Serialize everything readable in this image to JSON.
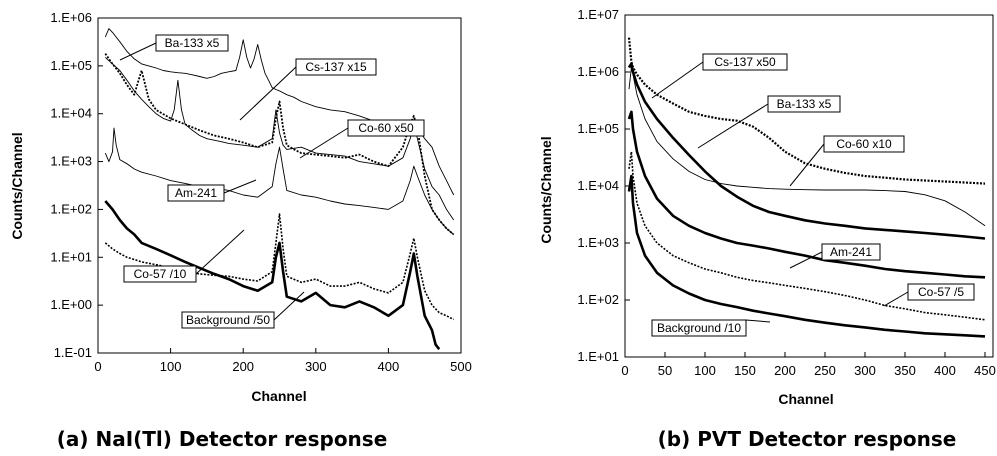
{
  "chart_data": [
    {
      "type": "line",
      "caption": "(a) NaI(Tl) Detector response",
      "xlabel": "Channel",
      "ylabel": "Counts/Channel",
      "xlim": [
        0,
        500
      ],
      "ylim": [
        0.1,
        1000000
      ],
      "yscale": "log",
      "xticks": [
        "0",
        "100",
        "200",
        "300",
        "400",
        "500"
      ],
      "yticks": [
        "1.E-01",
        "1.E+00",
        "1.E+01",
        "1.E+02",
        "1.E+03",
        "1.E+04",
        "1.E+05",
        "1.E+06"
      ],
      "grid": false,
      "series": [
        {
          "name": "Ba-133 x5",
          "x": [
            10,
            15,
            20,
            30,
            40,
            50,
            60,
            70,
            80,
            90,
            100,
            110,
            120,
            130,
            140,
            150,
            160,
            170,
            180,
            190,
            195,
            200,
            205,
            210,
            215,
            220,
            225,
            230,
            235,
            240,
            245,
            250,
            260,
            270,
            280,
            300,
            320,
            340,
            360,
            380,
            400,
            420,
            430,
            440,
            450,
            460,
            470,
            480,
            490
          ],
          "y": [
            400000,
            600000,
            500000,
            320000,
            200000,
            140000,
            110000,
            100000,
            90000,
            80000,
            75000,
            72000,
            70000,
            65000,
            60000,
            55000,
            60000,
            70000,
            75000,
            80000,
            150000,
            350000,
            150000,
            90000,
            140000,
            280000,
            130000,
            70000,
            50000,
            35000,
            32000,
            30000,
            25000,
            22000,
            18000,
            14000,
            12000,
            11000,
            9000,
            7000,
            6000,
            6500,
            7000,
            5000,
            3000,
            2000,
            800,
            400,
            200
          ]
        },
        {
          "name": "Cs-137 x15",
          "x": [
            10,
            20,
            30,
            40,
            50,
            60,
            70,
            80,
            90,
            100,
            105,
            110,
            115,
            120,
            130,
            140,
            150,
            160,
            170,
            180,
            200,
            220,
            240,
            245,
            250,
            255,
            260,
            280,
            300,
            320,
            340,
            360,
            380,
            400,
            420,
            430,
            435,
            440,
            450,
            460,
            470,
            480,
            490
          ],
          "y": [
            150000,
            110000,
            80000,
            50000,
            30000,
            20000,
            14000,
            10000,
            8000,
            7000,
            12000,
            50000,
            12000,
            6000,
            4500,
            3500,
            3000,
            2800,
            2600,
            2400,
            2200,
            2000,
            3000,
            12000,
            4000,
            2200,
            1800,
            2000,
            1500,
            1400,
            1300,
            1000,
            900,
            800,
            1200,
            3000,
            6000,
            3000,
            700,
            300,
            200,
            100,
            60
          ]
        },
        {
          "name": "Co-60 x50",
          "x": [
            10,
            20,
            30,
            40,
            50,
            55,
            60,
            65,
            70,
            80,
            100,
            120,
            140,
            160,
            180,
            200,
            220,
            240,
            245,
            250,
            255,
            260,
            270,
            280,
            300,
            320,
            340,
            360,
            380,
            400,
            420,
            430,
            435,
            440,
            450,
            460,
            470,
            480,
            490
          ],
          "y": [
            180000,
            110000,
            70000,
            40000,
            25000,
            45000,
            80000,
            40000,
            20000,
            12000,
            8000,
            6000,
            4500,
            3500,
            3000,
            2500,
            2000,
            2500,
            8000,
            18000,
            5000,
            2200,
            1800,
            1500,
            1400,
            1300,
            1200,
            1400,
            1000,
            800,
            2000,
            6000,
            9000,
            5000,
            500,
            100,
            60,
            40,
            30
          ]
        },
        {
          "name": "Am-241",
          "x": [
            10,
            15,
            20,
            22,
            25,
            30,
            40,
            50,
            60,
            80,
            100,
            120,
            140,
            160,
            180,
            200,
            220,
            240,
            245,
            250,
            255,
            260,
            280,
            300,
            320,
            340,
            360,
            380,
            400,
            420,
            430,
            435,
            440,
            450,
            460,
            470,
            480,
            490
          ],
          "y": [
            1500,
            1000,
            1600,
            5000,
            2200,
            1100,
            900,
            700,
            600,
            500,
            400,
            350,
            300,
            280,
            250,
            200,
            180,
            300,
            900,
            2000,
            700,
            250,
            200,
            180,
            150,
            130,
            120,
            110,
            100,
            150,
            400,
            800,
            500,
            200,
            100,
            60,
            40,
            30
          ]
        },
        {
          "name": "Co-57 /10",
          "x": [
            10,
            20,
            30,
            40,
            50,
            60,
            80,
            100,
            120,
            140,
            160,
            180,
            200,
            220,
            240,
            245,
            250,
            255,
            260,
            280,
            300,
            320,
            340,
            360,
            380,
            400,
            420,
            430,
            435,
            440,
            450,
            460,
            470,
            480,
            490
          ],
          "y": [
            20,
            15,
            12,
            10,
            9,
            8,
            7,
            6,
            5,
            4.5,
            4.2,
            4,
            3.5,
            3.2,
            5,
            20,
            80,
            15,
            4,
            3,
            3.5,
            2.5,
            2.5,
            3,
            2.2,
            1.8,
            3,
            12,
            25,
            10,
            2,
            1,
            0.7,
            0.6,
            0.5
          ]
        },
        {
          "name": "Background /50",
          "x": [
            10,
            20,
            30,
            40,
            50,
            60,
            80,
            100,
            120,
            140,
            160,
            180,
            200,
            220,
            240,
            245,
            250,
            255,
            260,
            280,
            300,
            320,
            340,
            360,
            380,
            400,
            420,
            430,
            435,
            440,
            450,
            460,
            465,
            470
          ],
          "y": [
            150,
            100,
            60,
            40,
            30,
            20,
            15,
            11,
            8,
            6,
            4.5,
            3.5,
            2.5,
            2,
            3,
            10,
            20,
            5,
            1.5,
            1.2,
            1.8,
            1.0,
            0.9,
            1.2,
            0.9,
            0.6,
            1.0,
            5,
            12,
            4,
            0.6,
            0.3,
            0.15,
            0.12
          ]
        }
      ]
    },
    {
      "type": "line",
      "caption": "(b) PVT Detector response",
      "xlabel": "Channel",
      "ylabel": "Counts/Channel",
      "xlim": [
        0,
        460
      ],
      "ylim": [
        10,
        10000000
      ],
      "yscale": "log",
      "xticks": [
        "0",
        "50",
        "100",
        "150",
        "200",
        "250",
        "300",
        "350",
        "400",
        "450"
      ],
      "yticks": [
        "1.E+01",
        "1.E+02",
        "1.E+03",
        "1.E+04",
        "1.E+05",
        "1.E+06",
        "1.E+07"
      ],
      "grid": false,
      "series": [
        {
          "name": "Cs-137 x50",
          "x": [
            5,
            8,
            10,
            15,
            25,
            40,
            60,
            80,
            100,
            120,
            140,
            160,
            180,
            200,
            225,
            250,
            275,
            300,
            325,
            350,
            375,
            400,
            425,
            450
          ],
          "y": [
            4000000,
            1500000,
            1200000,
            900000,
            600000,
            400000,
            280000,
            200000,
            170000,
            150000,
            140000,
            110000,
            70000,
            40000,
            25000,
            20000,
            17000,
            15000,
            14000,
            13000,
            12500,
            12000,
            11500,
            11000
          ]
        },
        {
          "name": "Ba-133 x5",
          "x": [
            5,
            8,
            10,
            15,
            25,
            40,
            60,
            80,
            100,
            120,
            140,
            160,
            180,
            200,
            225,
            250,
            275,
            300,
            325,
            350,
            375,
            400,
            425,
            450
          ],
          "y": [
            1200000,
            1400000,
            1000000,
            600000,
            300000,
            150000,
            70000,
            35000,
            18000,
            10000,
            6500,
            4500,
            3500,
            3000,
            2500,
            2200,
            2000,
            1800,
            1700,
            1600,
            1500,
            1400,
            1300,
            1200
          ]
        },
        {
          "name": "Co-60 x10",
          "x": [
            5,
            8,
            10,
            15,
            25,
            40,
            60,
            80,
            100,
            120,
            140,
            160,
            180,
            200,
            225,
            250,
            275,
            300,
            325,
            350,
            375,
            400,
            425,
            450
          ],
          "y": [
            500000,
            1200000,
            900000,
            400000,
            150000,
            60000,
            30000,
            18000,
            13000,
            11000,
            10000,
            9500,
            9000,
            8800,
            8600,
            8500,
            8500,
            8500,
            8300,
            8000,
            7000,
            5500,
            3500,
            2000
          ]
        },
        {
          "name": "Am-241",
          "x": [
            5,
            8,
            10,
            15,
            25,
            40,
            60,
            80,
            100,
            120,
            140,
            160,
            180,
            200,
            225,
            250,
            275,
            300,
            325,
            350,
            375,
            400,
            425,
            450
          ],
          "y": [
            150000,
            200000,
            100000,
            40000,
            15000,
            6000,
            3000,
            2000,
            1500,
            1200,
            1000,
            900,
            800,
            700,
            600,
            500,
            450,
            400,
            350,
            320,
            300,
            280,
            260,
            250
          ]
        },
        {
          "name": "Co-57 /5",
          "x": [
            5,
            8,
            10,
            15,
            25,
            40,
            60,
            80,
            100,
            120,
            140,
            160,
            180,
            200,
            225,
            250,
            275,
            300,
            325,
            350,
            375,
            400,
            425,
            450
          ],
          "y": [
            20000,
            40000,
            15000,
            5000,
            2000,
            1000,
            600,
            450,
            350,
            300,
            250,
            220,
            200,
            180,
            160,
            140,
            120,
            100,
            80,
            70,
            60,
            55,
            50,
            45
          ]
        },
        {
          "name": "Background /10",
          "x": [
            5,
            8,
            10,
            15,
            25,
            40,
            60,
            80,
            100,
            120,
            140,
            160,
            180,
            200,
            225,
            250,
            275,
            300,
            325,
            350,
            375,
            400,
            425,
            450
          ],
          "y": [
            8000,
            15000,
            5000,
            1500,
            600,
            300,
            180,
            130,
            100,
            85,
            75,
            65,
            58,
            52,
            45,
            40,
            36,
            33,
            30,
            28,
            26,
            25,
            24,
            23
          ]
        }
      ]
    }
  ]
}
